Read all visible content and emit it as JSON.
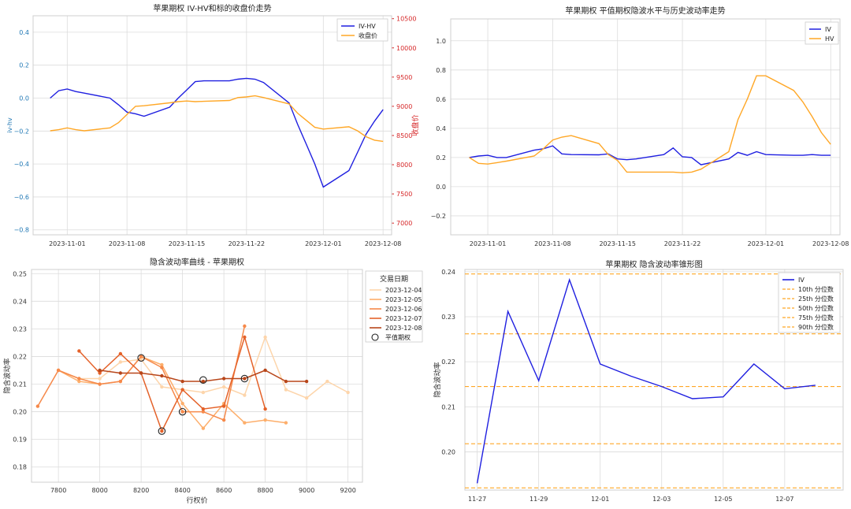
{
  "chart_data": [
    {
      "type": "line",
      "title": "苹果期权 IV-HV和标的收盘价走势",
      "ylabel": "iv-hv",
      "y2label": "收盘价",
      "x_ticks": [
        "2023-11-01",
        "2023-11-08",
        "2023-11-15",
        "2023-11-22",
        "2023-12-01",
        "2023-12-08"
      ],
      "y_ticks": [
        "−0.8",
        "−0.6",
        "−0.4",
        "−0.2",
        "0.0",
        "0.2",
        "0.4"
      ],
      "y2_ticks": [
        "7000",
        "7500",
        "8000",
        "8500",
        "9000",
        "9500",
        "10000",
        "10500"
      ],
      "ylim": [
        -0.83,
        0.5
      ],
      "y2lim": [
        6800,
        10550
      ],
      "legend": "top-right",
      "series": [
        {
          "name": "IV-HV",
          "axis": "left",
          "color": "#1f1fe0",
          "x": [
            "2023-10-30",
            "2023-10-31",
            "2023-11-01",
            "2023-11-02",
            "2023-11-03",
            "2023-11-06",
            "2023-11-07",
            "2023-11-08",
            "2023-11-09",
            "2023-11-10",
            "2023-11-13",
            "2023-11-14",
            "2023-11-15",
            "2023-11-16",
            "2023-11-17",
            "2023-11-20",
            "2023-11-21",
            "2023-11-22",
            "2023-11-23",
            "2023-11-24",
            "2023-11-27",
            "2023-11-28",
            "2023-11-29",
            "2023-11-30",
            "2023-12-01",
            "2023-12-04",
            "2023-12-05",
            "2023-12-06",
            "2023-12-07",
            "2023-12-08"
          ],
          "values": [
            0.0,
            0.045,
            0.055,
            0.04,
            0.03,
            0.0,
            -0.04,
            -0.085,
            -0.095,
            -0.11,
            -0.055,
            0.0,
            0.05,
            0.1,
            0.105,
            0.105,
            0.115,
            0.12,
            0.115,
            0.095,
            -0.03,
            -0.16,
            -0.28,
            -0.4,
            -0.54,
            -0.44,
            -0.33,
            -0.22,
            -0.14,
            -0.07
          ]
        },
        {
          "name": "收盘价",
          "axis": "right",
          "color": "#ffa726",
          "x": [
            "2023-10-30",
            "2023-10-31",
            "2023-11-01",
            "2023-11-02",
            "2023-11-03",
            "2023-11-06",
            "2023-11-07",
            "2023-11-08",
            "2023-11-09",
            "2023-11-10",
            "2023-11-13",
            "2023-11-14",
            "2023-11-15",
            "2023-11-16",
            "2023-11-17",
            "2023-11-20",
            "2023-11-21",
            "2023-11-22",
            "2023-11-23",
            "2023-11-24",
            "2023-11-27",
            "2023-11-28",
            "2023-11-29",
            "2023-11-30",
            "2023-12-01",
            "2023-12-04",
            "2023-12-05",
            "2023-12-06",
            "2023-12-07",
            "2023-12-08"
          ],
          "values": [
            8580,
            8600,
            8630,
            8600,
            8580,
            8630,
            8720,
            8860,
            9000,
            9010,
            9060,
            9080,
            9090,
            9080,
            9085,
            9100,
            9150,
            9160,
            9180,
            9150,
            9040,
            8880,
            8760,
            8640,
            8610,
            8650,
            8580,
            8480,
            8420,
            8400
          ]
        }
      ]
    },
    {
      "type": "line",
      "title": "苹果期权 平值期权隐波水平与历史波动率走势",
      "x_ticks": [
        "2023-11-01",
        "2023-11-08",
        "2023-11-15",
        "2023-11-22",
        "2023-12-01",
        "2023-12-08"
      ],
      "y_ticks": [
        "−0.2",
        "0.0",
        "0.2",
        "0.4",
        "0.6",
        "0.8",
        "1.0"
      ],
      "ylim": [
        -0.33,
        1.15
      ],
      "legend": "top-right",
      "series": [
        {
          "name": "IV",
          "color": "#1f1fe0",
          "x": [
            "2023-10-30",
            "2023-10-31",
            "2023-11-01",
            "2023-11-02",
            "2023-11-03",
            "2023-11-06",
            "2023-11-07",
            "2023-11-08",
            "2023-11-09",
            "2023-11-10",
            "2023-11-13",
            "2023-11-14",
            "2023-11-15",
            "2023-11-16",
            "2023-11-17",
            "2023-11-20",
            "2023-11-21",
            "2023-11-22",
            "2023-11-23",
            "2023-11-24",
            "2023-11-27",
            "2023-11-28",
            "2023-11-29",
            "2023-11-30",
            "2023-12-01",
            "2023-12-04",
            "2023-12-05",
            "2023-12-06",
            "2023-12-07",
            "2023-12-08"
          ],
          "values": [
            0.2,
            0.21,
            0.215,
            0.2,
            0.2,
            0.25,
            0.26,
            0.28,
            0.225,
            0.22,
            0.218,
            0.225,
            0.19,
            0.185,
            0.19,
            0.22,
            0.265,
            0.205,
            0.2,
            0.15,
            0.19,
            0.235,
            0.215,
            0.24,
            0.22,
            0.215,
            0.215,
            0.22,
            0.215,
            0.215
          ]
        },
        {
          "name": "HV",
          "color": "#ffa726",
          "x": [
            "2023-10-30",
            "2023-10-31",
            "2023-11-01",
            "2023-11-02",
            "2023-11-03",
            "2023-11-06",
            "2023-11-07",
            "2023-11-08",
            "2023-11-09",
            "2023-11-10",
            "2023-11-13",
            "2023-11-14",
            "2023-11-15",
            "2023-11-16",
            "2023-11-17",
            "2023-11-20",
            "2023-11-21",
            "2023-11-22",
            "2023-11-23",
            "2023-11-24",
            "2023-11-27",
            "2023-11-28",
            "2023-11-29",
            "2023-11-30",
            "2023-12-01",
            "2023-12-04",
            "2023-12-05",
            "2023-12-06",
            "2023-12-07",
            "2023-12-08"
          ],
          "values": [
            0.2,
            0.16,
            0.155,
            0.165,
            0.175,
            0.21,
            0.26,
            0.32,
            0.34,
            0.35,
            0.295,
            0.22,
            0.18,
            0.1,
            0.1,
            0.1,
            0.1,
            0.095,
            0.1,
            0.12,
            0.24,
            0.46,
            0.6,
            0.76,
            0.76,
            0.66,
            0.58,
            0.48,
            0.37,
            0.29
          ]
        }
      ]
    },
    {
      "type": "line",
      "title": "隐含波动率曲线 - 苹果期权",
      "xlabel": "行权价",
      "ylabel": "隐含波动率",
      "x_ticks": [
        "7800",
        "8000",
        "8200",
        "8400",
        "8600",
        "8800",
        "9000",
        "9200"
      ],
      "y_ticks": [
        "0.18",
        "0.19",
        "0.20",
        "0.21",
        "0.22",
        "0.23",
        "0.24",
        "0.25"
      ],
      "xlim": [
        7670,
        9270
      ],
      "ylim": [
        0.1745,
        0.2515
      ],
      "legend_title": "交易日期",
      "legend": "upper right, outside",
      "series": [
        {
          "name": "2023-12-04",
          "color": "#fdd5ab",
          "x": [
            7800,
            7900,
            8000,
            8100,
            8200,
            8300,
            8400,
            8500,
            8600,
            8700,
            8800,
            8900,
            9000,
            9100,
            9200
          ],
          "values": [
            0.215,
            0.212,
            0.212,
            0.218,
            0.219,
            0.209,
            0.208,
            0.207,
            0.209,
            0.206,
            0.227,
            0.208,
            0.205,
            0.211,
            0.207
          ]
        },
        {
          "name": "2023-12-05",
          "color": "#fdae6b",
          "x": [
            7800,
            7900,
            8000,
            8100,
            8200,
            8300,
            8400,
            8500,
            8600,
            8700,
            8800,
            8900
          ],
          "values": [
            0.215,
            0.211,
            0.21,
            0.211,
            0.22,
            0.217,
            0.203,
            0.194,
            0.203,
            0.196,
            0.197,
            0.196
          ]
        },
        {
          "name": "2023-12-06",
          "color": "#f6894a",
          "x": [
            7700,
            7800,
            7900,
            8000,
            8100,
            8200,
            8300,
            8400,
            8500,
            8600,
            8700
          ],
          "values": [
            0.202,
            0.215,
            0.212,
            0.21,
            0.211,
            0.22,
            0.216,
            0.2,
            0.2,
            0.197,
            0.231
          ]
        },
        {
          "name": "2023-12-07",
          "color": "#e4622a",
          "x": [
            7900,
            8000,
            8100,
            8200,
            8300,
            8400,
            8500,
            8600,
            8700,
            8800
          ],
          "values": [
            0.222,
            0.214,
            0.221,
            0.214,
            0.193,
            0.208,
            0.201,
            0.202,
            0.227,
            0.201
          ]
        },
        {
          "name": "2023-12-08",
          "color": "#b8461a",
          "x": [
            8000,
            8100,
            8200,
            8300,
            8400,
            8500,
            8600,
            8700,
            8800,
            8900,
            9000
          ],
          "values": [
            0.215,
            0.214,
            0.214,
            0.213,
            0.211,
            0.211,
            0.212,
            0.212,
            0.215,
            0.211,
            0.211
          ]
        }
      ],
      "atm_label": "平值期权",
      "atm_points": [
        [
          8200,
          0.2195
        ],
        [
          8300,
          0.193
        ],
        [
          8400,
          0.2
        ],
        [
          8500,
          0.2115
        ],
        [
          8700,
          0.212
        ]
      ]
    },
    {
      "type": "line",
      "title": "苹果期权 隐含波动率锥形图",
      "ylabel": "隐含波动率",
      "x_ticks": [
        "11-27",
        "11-29",
        "12-01",
        "12-03",
        "12-05",
        "12-07"
      ],
      "y_ticks": [
        "0.20",
        "0.21",
        "0.22",
        "0.23",
        "0.24"
      ],
      "ylim": [
        0.1915,
        0.2405
      ],
      "legend": "top-right",
      "series": [
        {
          "name": "IV",
          "color": "#1f1fe0",
          "x": [
            0,
            1,
            2,
            3,
            4,
            5,
            6,
            7,
            8,
            9,
            10,
            11
          ],
          "values": [
            0.193,
            0.2312,
            0.2158,
            0.2382,
            0.2195,
            0.2168,
            0.2145,
            0.2118,
            0.2122,
            0.2195,
            0.214,
            0.2148
          ]
        }
      ],
      "percentiles": [
        {
          "name": "10th 分位数",
          "value": 0.192
        },
        {
          "name": "25th 分位数",
          "value": 0.2018
        },
        {
          "name": "50th 分位数",
          "value": 0.2145
        },
        {
          "name": "75th 分位数",
          "value": 0.2262
        },
        {
          "name": "90th 分位数",
          "value": 0.2395
        }
      ]
    }
  ]
}
